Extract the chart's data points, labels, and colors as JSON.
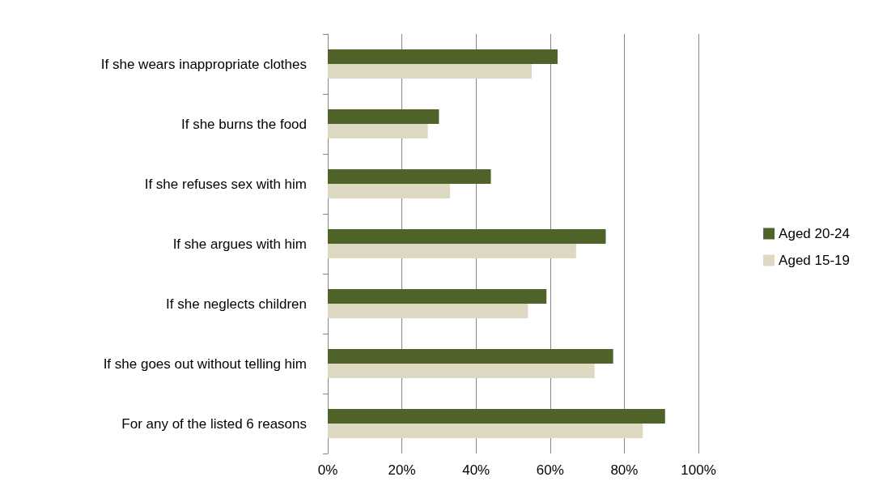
{
  "chart_data": {
    "type": "bar",
    "orientation": "horizontal",
    "categories": [
      "If she wears inappropriate clothes",
      "If she burns the food",
      "If she refuses sex with him",
      "If she argues with him",
      "If she neglects children",
      "If she goes out without telling him",
      "For any of the listed 6 reasons"
    ],
    "series": [
      {
        "name": "Aged 20-24",
        "color": "#4f6228",
        "values": [
          62,
          30,
          44,
          75,
          59,
          77,
          91
        ]
      },
      {
        "name": "Aged 15-19",
        "color": "#ddd9c3",
        "values": [
          55,
          27,
          33,
          67,
          54,
          72,
          85
        ]
      }
    ],
    "xlim": [
      0,
      100
    ],
    "xticks": [
      {
        "value": 0,
        "label": "0%"
      },
      {
        "value": 20,
        "label": "20%"
      },
      {
        "value": 40,
        "label": "40%"
      },
      {
        "value": 60,
        "label": "60%"
      },
      {
        "value": 80,
        "label": "80%"
      },
      {
        "value": 100,
        "label": "100%"
      }
    ],
    "grid": "x",
    "legend": "right"
  }
}
